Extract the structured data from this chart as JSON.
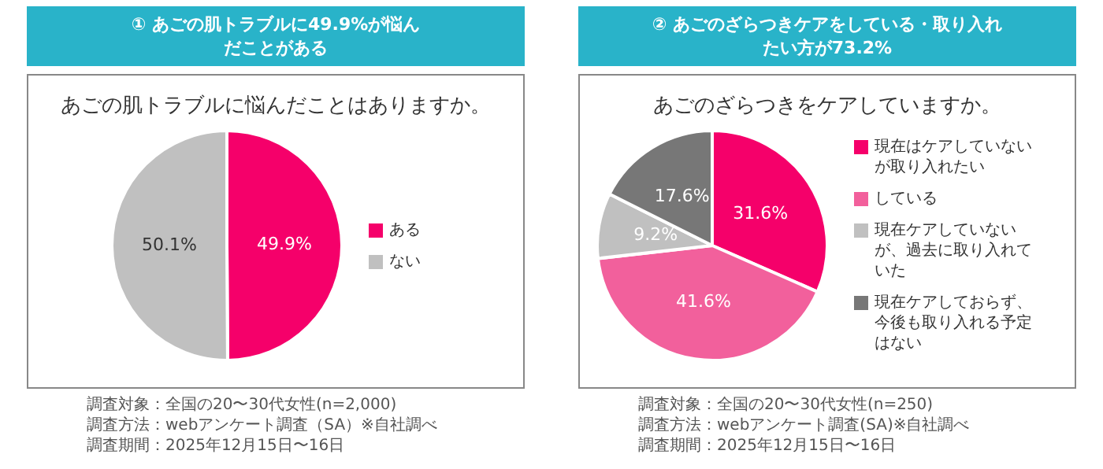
{
  "chart_data": [
    {
      "type": "pie",
      "title": "① あごの肌トラブルに49.9%が悩んだことがある",
      "subtitle": "あごの肌トラブルに悩んだことはありますか。",
      "categories": [
        "ある",
        "ない"
      ],
      "values": [
        49.9,
        50.1
      ],
      "value_labels": [
        "49.9%",
        "50.1%"
      ],
      "colors": [
        "#f5006a",
        "#c0c0c0"
      ],
      "legend": "right",
      "annotations": [
        "調査対象：全国の20〜30代女性(n=2,000)",
        "調査方法：webアンケート調査（SA）※自社調べ",
        "調査期間：2025年12月15日〜16日"
      ]
    },
    {
      "type": "pie",
      "title": "② あごのざらつきケアをしている・取り入れたい方が73.2%",
      "subtitle": "あごのざらつきをケアしていますか。",
      "categories": [
        "現在はケアしていないが取り入れたい",
        "している",
        "現在ケアしていないが、過去に取り入れていた",
        "現在ケアしておらず、今後も取り入れる予定はない"
      ],
      "values": [
        31.6,
        41.6,
        9.2,
        17.6
      ],
      "value_labels": [
        "31.6%",
        "41.6%",
        "9.2%",
        "17.6%"
      ],
      "colors": [
        "#f5006a",
        "#f2609c",
        "#c0c0c0",
        "#777777"
      ],
      "legend": "right",
      "annotations": [
        "調査対象：全国の20〜30代女性(n=250)",
        "調査方法：webアンケート調査(SA)※自社調べ",
        "調査期間：2025年12月15日〜16日"
      ]
    }
  ]
}
